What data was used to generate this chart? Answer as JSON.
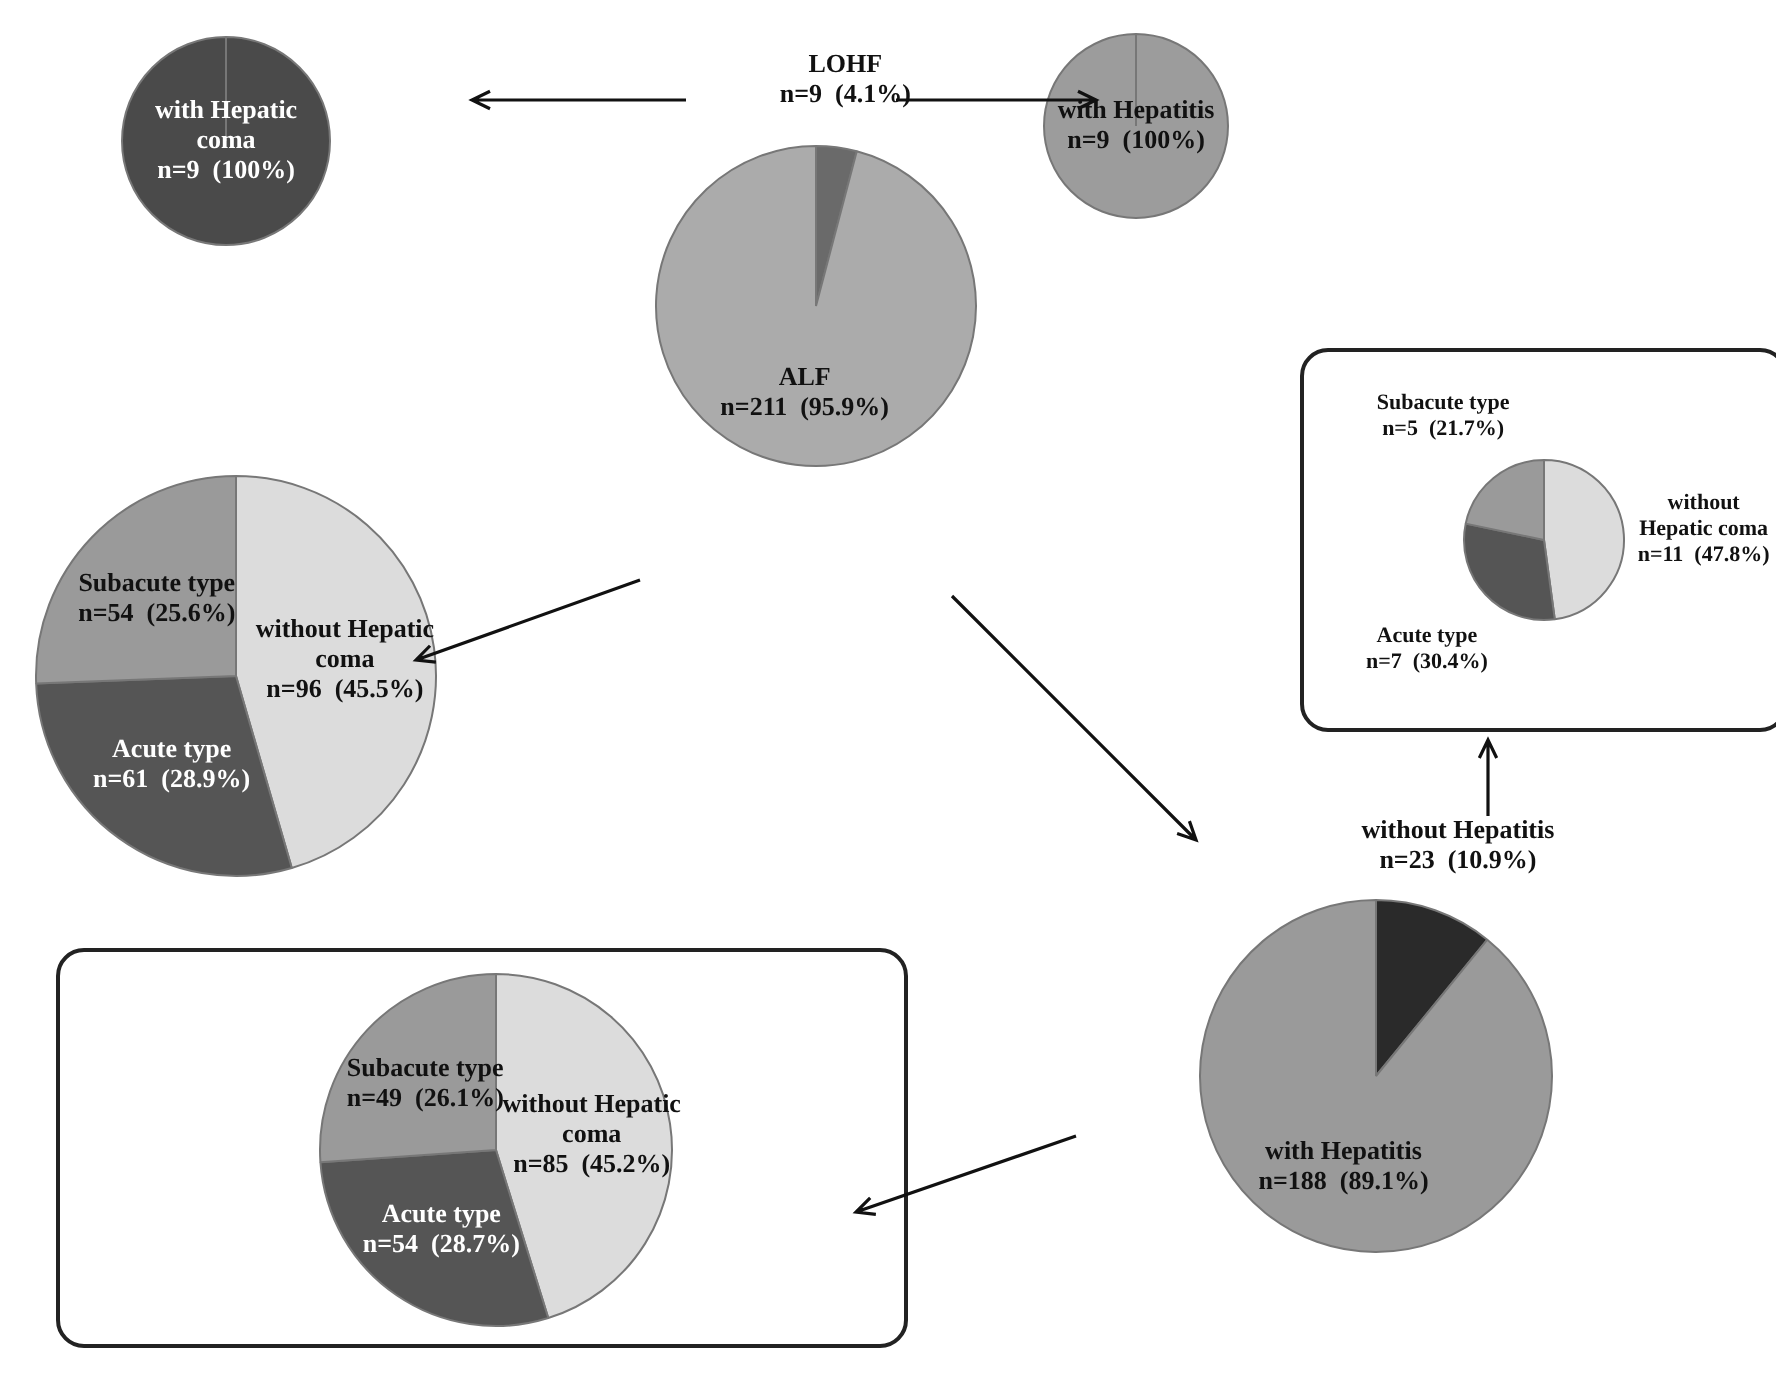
{
  "chart_data": [
    {
      "type": "pie",
      "categories": [
        "with Hepatic coma"
      ],
      "values": [
        100
      ],
      "colors": [
        "#4a4a4a"
      ],
      "value_labels": [
        "n=9  (100%)"
      ]
    },
    {
      "type": "pie",
      "categories": [
        "with Hepatitis"
      ],
      "values": [
        100
      ],
      "colors": [
        "#9c9c9c"
      ],
      "value_labels": [
        "n=9  (100%)"
      ]
    },
    {
      "type": "pie",
      "categories": [
        "LOHF",
        "ALF"
      ],
      "values": [
        4.1,
        95.9
      ],
      "colors": [
        "#6a6a6a",
        "#ababab"
      ],
      "value_labels": [
        "n=9  (4.1%)",
        "n=211  (95.9%)"
      ]
    },
    {
      "type": "pie",
      "categories": [
        "without Hepatic coma",
        "Acute type",
        "Subacute type"
      ],
      "values": [
        47.8,
        30.4,
        21.7
      ],
      "colors": [
        "#dcdcdc",
        "#555555",
        "#9a9a9a"
      ],
      "value_labels": [
        "n=11  (47.8%)",
        "n=7  (30.4%)",
        "n=5  (21.7%)"
      ]
    },
    {
      "type": "pie",
      "categories": [
        "without Hepatic coma",
        "Acute type",
        "Subacute type"
      ],
      "values": [
        45.5,
        28.9,
        25.6
      ],
      "colors": [
        "#dcdcdc",
        "#555555",
        "#9a9a9a"
      ],
      "value_labels": [
        "n=96  (45.5%)",
        "n=61  (28.9%)",
        "n=54  (25.6%)"
      ]
    },
    {
      "type": "pie",
      "categories": [
        "without Hepatitis",
        "with Hepatitis"
      ],
      "values": [
        10.9,
        89.1
      ],
      "colors": [
        "#2a2a2a",
        "#9a9a9a"
      ],
      "value_labels": [
        "n=23  (10.9%)",
        "n=188  (89.1%)"
      ]
    },
    {
      "type": "pie",
      "categories": [
        "without Hepatic coma",
        "Acute type",
        "Subacute type"
      ],
      "values": [
        45.2,
        28.7,
        26.1
      ],
      "colors": [
        "#dcdcdc",
        "#555555",
        "#9a9a9a"
      ],
      "value_labels": [
        "n=85  (45.2%)",
        "n=54  (28.7%)",
        "n=49  (26.1%)"
      ]
    }
  ]
}
